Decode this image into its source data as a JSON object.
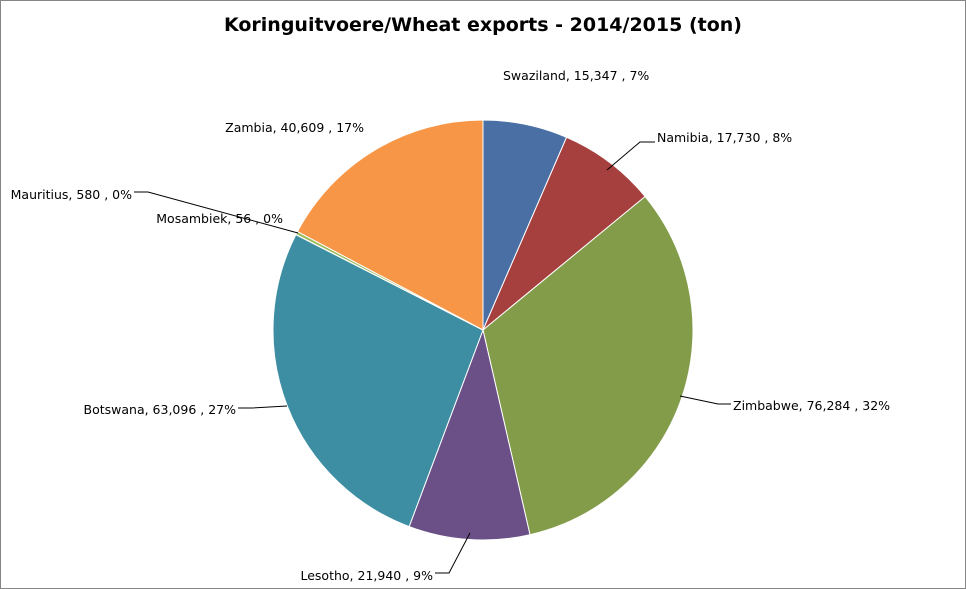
{
  "chart_data": {
    "type": "pie",
    "title": "Koringuitvoere/Wheat exports - 2014/2015 (ton)",
    "slices": [
      {
        "name": "Swaziland",
        "value": 15347,
        "value_label": "15,347",
        "percent_label": "7%",
        "color": "#4A6FA5"
      },
      {
        "name": "Namibia",
        "value": 17730,
        "value_label": "17,730",
        "percent_label": "8%",
        "color": "#A5403E"
      },
      {
        "name": "Zimbabwe",
        "value": 76284,
        "value_label": "76,284",
        "percent_label": "32%",
        "color": "#829C4A"
      },
      {
        "name": "Lesotho",
        "value": 21940,
        "value_label": "21,940",
        "percent_label": "9%",
        "color": "#6A5087"
      },
      {
        "name": "Botswana",
        "value": 63096,
        "value_label": "63,096",
        "percent_label": "27%",
        "color": "#3D8EA2"
      },
      {
        "name": "Mosambiek",
        "value": 56,
        "value_label": "56",
        "percent_label": "0%",
        "color": "#A7C5E2"
      },
      {
        "name": "Mauritius",
        "value": 580,
        "value_label": "580",
        "percent_label": "0%",
        "color": "#9BBB59"
      },
      {
        "name": "Zambia",
        "value": 40609,
        "value_label": "40,609",
        "percent_label": "17%",
        "color": "#F79646"
      }
    ],
    "start_angle_deg": 0,
    "direction": "clockwise",
    "legend": "none",
    "label_format": "name, value , percent"
  }
}
